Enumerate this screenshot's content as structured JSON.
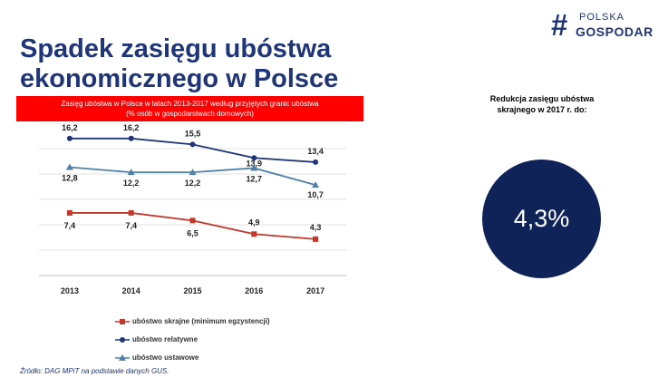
{
  "logo": {
    "line1": "POLSKA",
    "line2": "GOSPODAR",
    "icon": "hash-icon"
  },
  "title": "Spadek zasięgu ubóstwa ekonomicznego w Polsce",
  "banner": {
    "line1": "Zasięg ubóstwa w Polsce w latach 2013-2017 według przyjętych granic ubóstwa",
    "line2": "(% osób w gospodarstwach domowych)"
  },
  "reduction": {
    "label": "Redukcja zasięgu ubóstwa skrajnego w 2017 r. do:",
    "value": "4,3%"
  },
  "source": "Źródło: DAG MPiT na podstawie danych GUS.",
  "colors": {
    "title": "#1f3577",
    "banner": "#ff0000",
    "circle": "#0f2358"
  },
  "chart_data": {
    "type": "line",
    "categories": [
      "2013",
      "2014",
      "2015",
      "2016",
      "2017"
    ],
    "ylim": [
      0,
      18
    ],
    "grid": true,
    "legend_position": "bottom",
    "series": [
      {
        "name": "ubóstwo skrajne (minimum egzystencji)",
        "values": [
          7.4,
          7.4,
          6.5,
          4.9,
          4.3
        ],
        "labels": [
          "7,4",
          "7,4",
          "6,5",
          "4,9",
          "4,3"
        ],
        "color": "#c0392b",
        "marker": "square"
      },
      {
        "name": "ubóstwo relatywne",
        "values": [
          16.2,
          16.2,
          15.5,
          13.9,
          13.4
        ],
        "labels": [
          "16,2",
          "16,2",
          "15,5",
          "13,9",
          "13,4"
        ],
        "color": "#1f3577",
        "marker": "circle"
      },
      {
        "name": "ubóstwo ustawowe",
        "values": [
          12.8,
          12.2,
          12.2,
          12.7,
          10.7
        ],
        "labels": [
          "12,8",
          "12,2",
          "12,2",
          "12,7",
          "10,7"
        ],
        "color": "#4f81a8",
        "marker": "triangle"
      }
    ]
  }
}
